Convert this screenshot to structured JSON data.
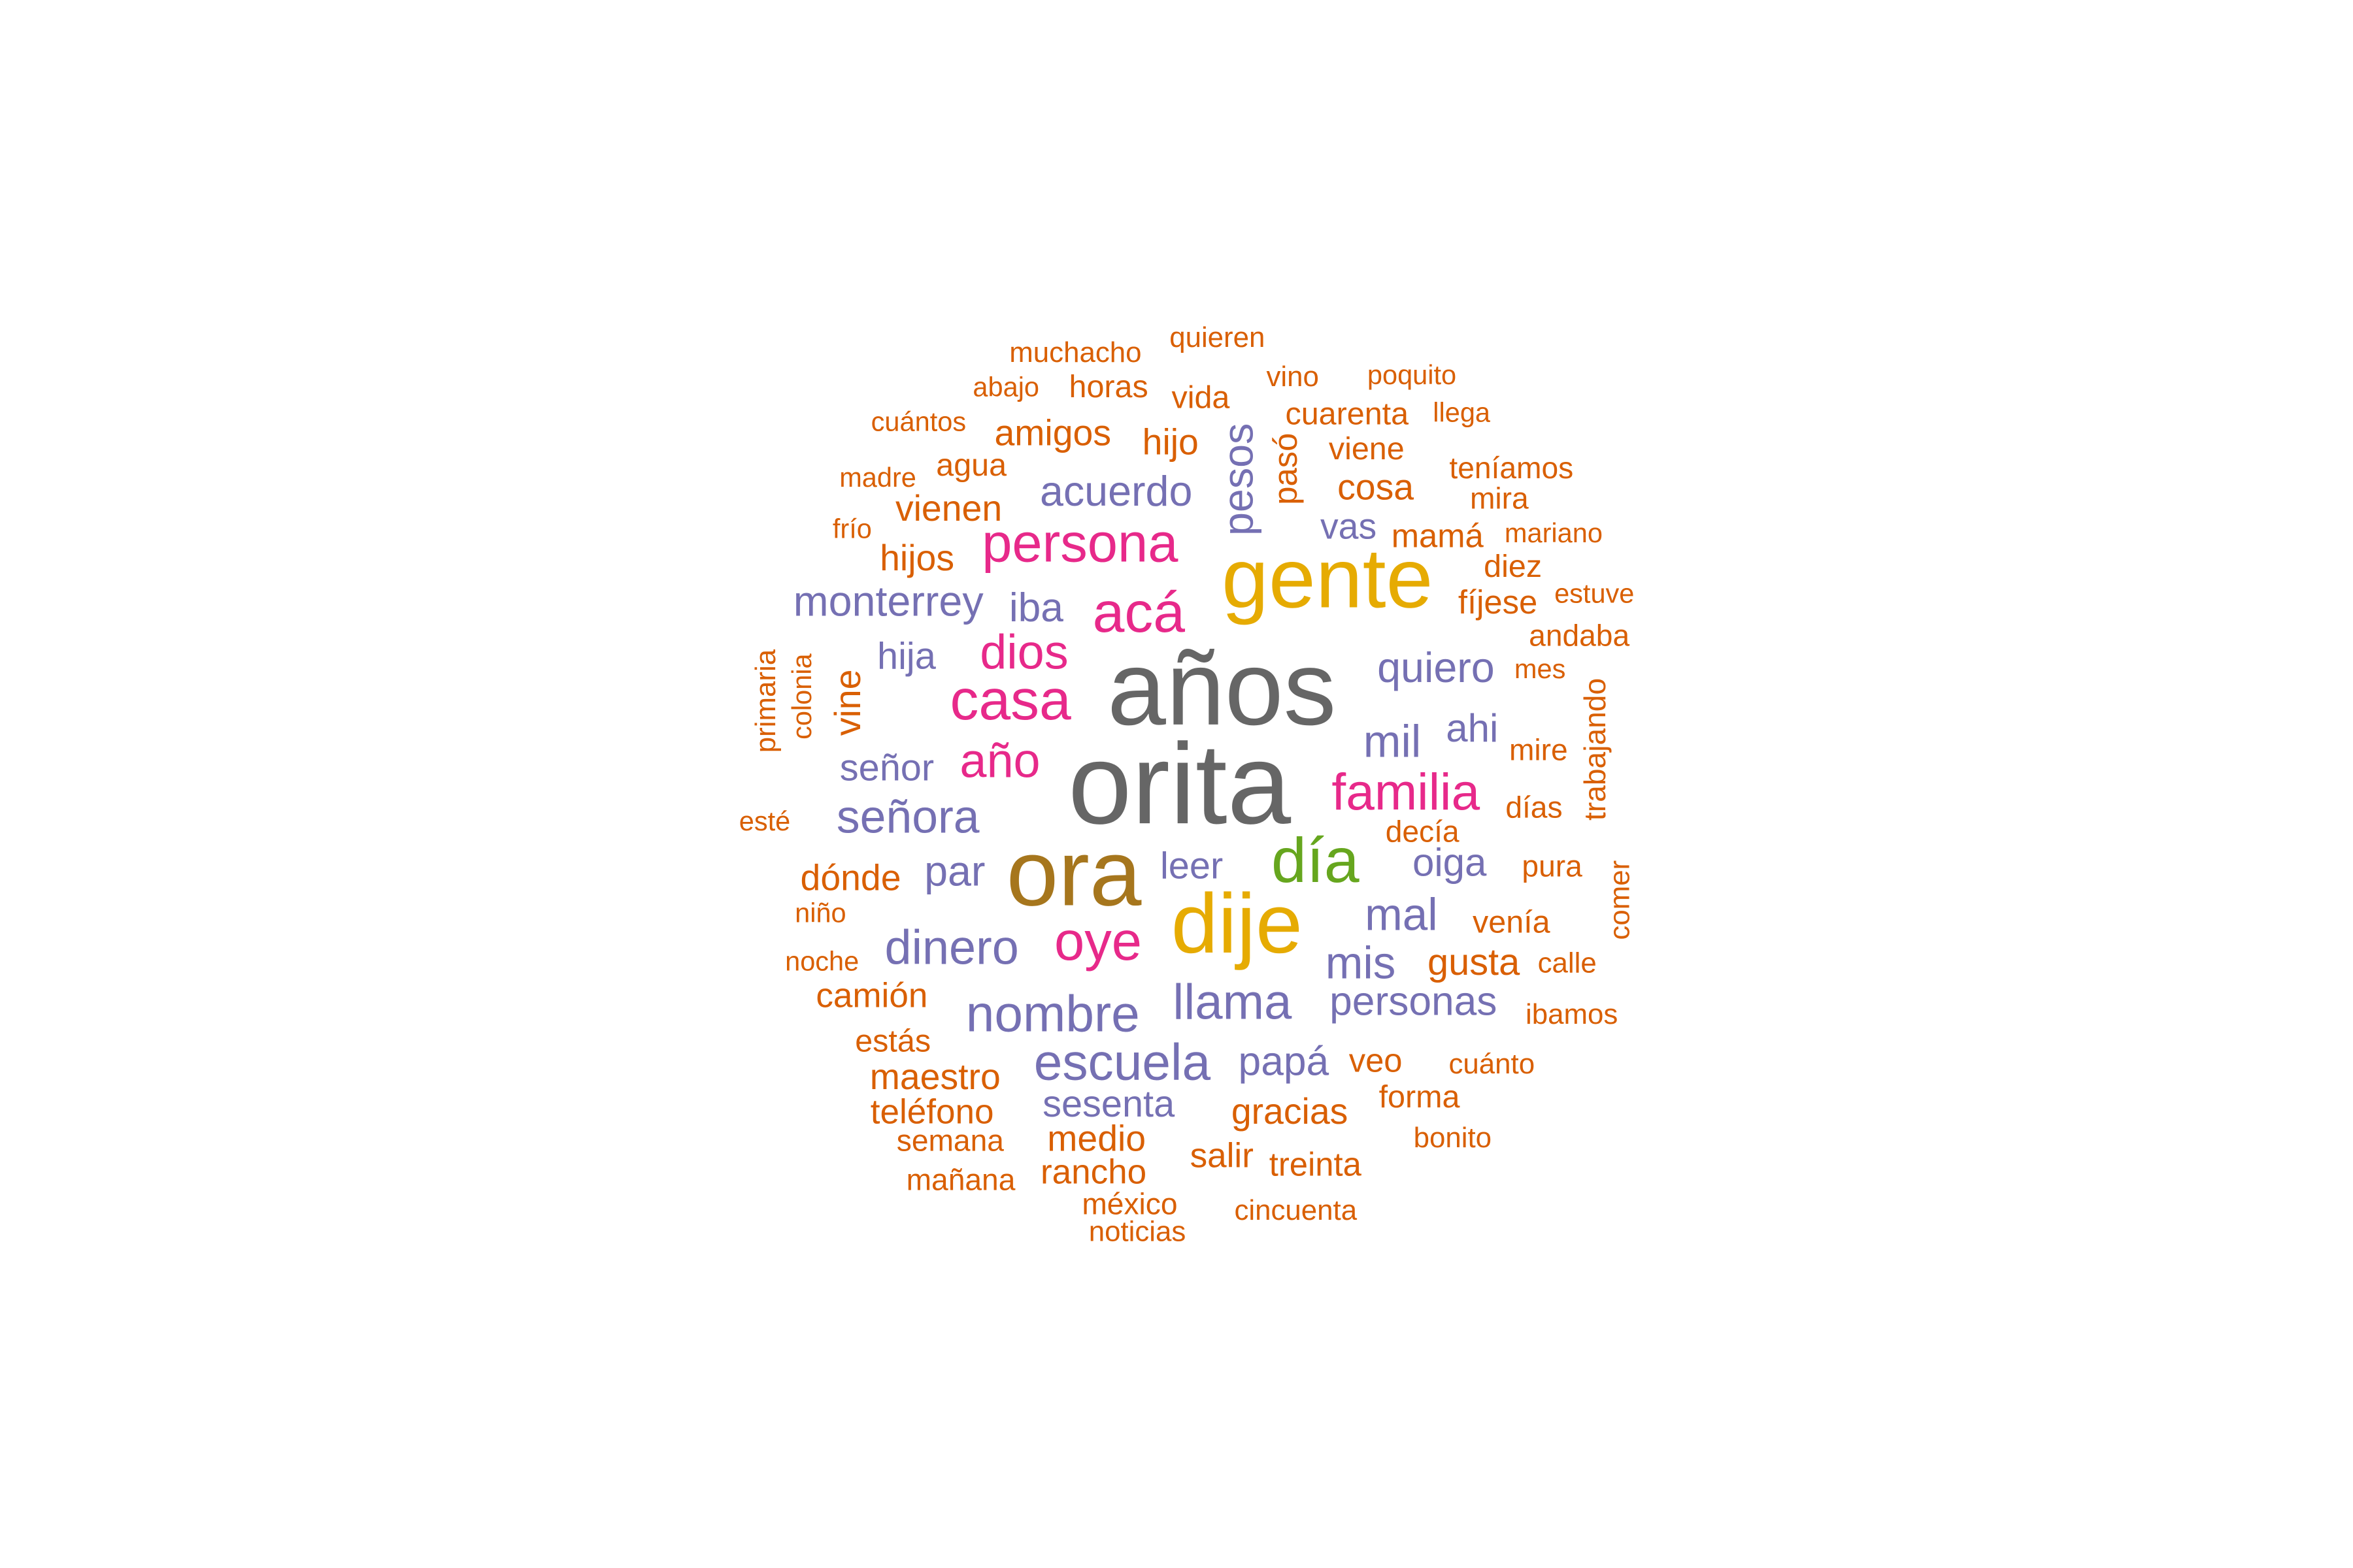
{
  "palette": {
    "gray": "#666666",
    "gold": "#E6AB02",
    "brown": "#A6761D",
    "green": "#66A61E",
    "magenta": "#E7298A",
    "purple": "#7570B3",
    "orange": "#D95F02"
  },
  "words": [
    {
      "text": "años",
      "color": "gray"
    },
    {
      "text": "orita",
      "color": "gray"
    },
    {
      "text": "ora",
      "color": "brown"
    },
    {
      "text": "gente",
      "color": "gold"
    },
    {
      "text": "dije",
      "color": "gold"
    },
    {
      "text": "día",
      "color": "green"
    },
    {
      "text": "casa",
      "color": "magenta"
    },
    {
      "text": "acá",
      "color": "magenta"
    },
    {
      "text": "persona",
      "color": "magenta"
    },
    {
      "text": "familia",
      "color": "magenta"
    },
    {
      "text": "dios",
      "color": "magenta"
    },
    {
      "text": "año",
      "color": "magenta"
    },
    {
      "text": "oye",
      "color": "magenta"
    },
    {
      "text": "escuela",
      "color": "purple"
    },
    {
      "text": "nombre",
      "color": "purple"
    },
    {
      "text": "llama",
      "color": "purple"
    },
    {
      "text": "dinero",
      "color": "purple"
    },
    {
      "text": "señora",
      "color": "purple"
    },
    {
      "text": "monterrey",
      "color": "purple"
    },
    {
      "text": "acuerdo",
      "color": "purple"
    },
    {
      "text": "quiero",
      "color": "purple"
    },
    {
      "text": "mis",
      "color": "purple"
    },
    {
      "text": "personas",
      "color": "purple"
    },
    {
      "text": "mil",
      "color": "purple"
    },
    {
      "text": "mal",
      "color": "purple"
    },
    {
      "text": "oiga",
      "color": "purple"
    },
    {
      "text": "pesos",
      "color": "purple"
    },
    {
      "text": "par",
      "color": "purple"
    },
    {
      "text": "papá",
      "color": "purple"
    },
    {
      "text": "sesenta",
      "color": "purple"
    },
    {
      "text": "leer",
      "color": "purple"
    },
    {
      "text": "señor",
      "color": "purple"
    },
    {
      "text": "iba",
      "color": "purple"
    },
    {
      "text": "hija",
      "color": "purple"
    },
    {
      "text": "ahi",
      "color": "purple"
    },
    {
      "text": "vas",
      "color": "purple"
    },
    {
      "text": "gusta",
      "color": "orange"
    },
    {
      "text": "amigos",
      "color": "orange"
    },
    {
      "text": "hijo",
      "color": "orange"
    },
    {
      "text": "cosa",
      "color": "orange"
    },
    {
      "text": "hijos",
      "color": "orange"
    },
    {
      "text": "vienen",
      "color": "orange"
    },
    {
      "text": "dónde",
      "color": "orange"
    },
    {
      "text": "camión",
      "color": "orange"
    },
    {
      "text": "maestro",
      "color": "orange"
    },
    {
      "text": "teléfono",
      "color": "orange"
    },
    {
      "text": "medio",
      "color": "orange"
    },
    {
      "text": "gracias",
      "color": "orange"
    },
    {
      "text": "rancho",
      "color": "orange"
    },
    {
      "text": "salir",
      "color": "orange"
    },
    {
      "text": "treinta",
      "color": "orange"
    },
    {
      "text": "veo",
      "color": "orange"
    },
    {
      "text": "forma",
      "color": "orange"
    },
    {
      "text": "vine",
      "color": "orange"
    },
    {
      "text": "mamá",
      "color": "orange"
    },
    {
      "text": "diez",
      "color": "orange"
    },
    {
      "text": "fíjese",
      "color": "orange"
    },
    {
      "text": "pasó",
      "color": "orange"
    },
    {
      "text": "cuarenta",
      "color": "orange"
    },
    {
      "text": "viene",
      "color": "orange"
    },
    {
      "text": "horas",
      "color": "orange"
    },
    {
      "text": "vida",
      "color": "orange"
    },
    {
      "text": "agua",
      "color": "orange"
    },
    {
      "text": "teníamos",
      "color": "orange"
    },
    {
      "text": "mira",
      "color": "orange"
    },
    {
      "text": "andaba",
      "color": "orange"
    },
    {
      "text": "mire",
      "color": "orange"
    },
    {
      "text": "días",
      "color": "orange"
    },
    {
      "text": "decía",
      "color": "orange"
    },
    {
      "text": "pura",
      "color": "orange"
    },
    {
      "text": "venía",
      "color": "orange"
    },
    {
      "text": "trabajando",
      "color": "orange"
    },
    {
      "text": "estás",
      "color": "orange"
    },
    {
      "text": "semana",
      "color": "orange"
    },
    {
      "text": "mañana",
      "color": "orange"
    },
    {
      "text": "méxico",
      "color": "orange"
    },
    {
      "text": "noticias",
      "color": "orange"
    },
    {
      "text": "cincuenta",
      "color": "orange"
    },
    {
      "text": "cuánto",
      "color": "orange"
    },
    {
      "text": "bonito",
      "color": "orange"
    },
    {
      "text": "ibamos",
      "color": "orange"
    },
    {
      "text": "calle",
      "color": "orange"
    },
    {
      "text": "comer",
      "color": "orange"
    },
    {
      "text": "muchacho",
      "color": "orange"
    },
    {
      "text": "quieren",
      "color": "orange"
    },
    {
      "text": "vino",
      "color": "orange"
    },
    {
      "text": "poquito",
      "color": "orange"
    },
    {
      "text": "abajo",
      "color": "orange"
    },
    {
      "text": "cuántos",
      "color": "orange"
    },
    {
      "text": "llega",
      "color": "orange"
    },
    {
      "text": "madre",
      "color": "orange"
    },
    {
      "text": "frío",
      "color": "orange"
    },
    {
      "text": "mariano",
      "color": "orange"
    },
    {
      "text": "estuve",
      "color": "orange"
    },
    {
      "text": "mes",
      "color": "orange"
    },
    {
      "text": "primaria",
      "color": "orange"
    },
    {
      "text": "colonia",
      "color": "orange"
    },
    {
      "text": "esté",
      "color": "orange"
    },
    {
      "text": "niño",
      "color": "orange"
    },
    {
      "text": "noche",
      "color": "orange"
    }
  ]
}
